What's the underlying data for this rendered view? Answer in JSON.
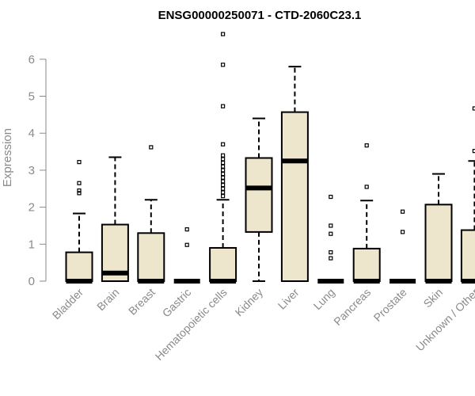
{
  "chart_data": {
    "type": "boxplot",
    "title": "ENSG00000250071 - CTD-2060C23.1",
    "ylabel": "Expression",
    "xlabel": "",
    "ylim": [
      0,
      7
    ],
    "yticks": [
      0,
      1,
      2,
      3,
      4,
      5,
      6
    ],
    "grid": false,
    "box_fill": "#ede5cc",
    "categories": [
      "Bladder",
      "Brain",
      "Breast",
      "Gastric",
      "Hematopoietic cells",
      "Kidney",
      "Liver",
      "Lung",
      "Pancreas",
      "Prostate",
      "Skin",
      "Unknown / Other"
    ],
    "boxes": [
      {
        "q1": 0,
        "median": 0,
        "q3": 0.78,
        "whisker_low": 0,
        "whisker_high": 1.83,
        "outliers": [
          2.38,
          2.45,
          2.65,
          3.22
        ]
      },
      {
        "q1": 0,
        "median": 0.22,
        "q3": 1.53,
        "whisker_low": 0,
        "whisker_high": 3.35,
        "outliers": []
      },
      {
        "q1": 0,
        "median": 0,
        "q3": 1.3,
        "whisker_low": 0,
        "whisker_high": 2.2,
        "outliers": [
          3.62
        ]
      },
      {
        "q1": 0,
        "median": 0,
        "q3": 0,
        "whisker_low": 0,
        "whisker_high": 0,
        "outliers": [
          0.98,
          1.4
        ]
      },
      {
        "q1": 0,
        "median": 0,
        "q3": 0.9,
        "whisker_low": 0,
        "whisker_high": 2.2,
        "outliers": [
          2.3,
          2.4,
          2.5,
          2.6,
          2.7,
          2.8,
          2.9,
          3.0,
          3.1,
          3.2,
          3.3,
          3.4,
          3.7,
          4.73,
          5.85,
          6.68
        ]
      },
      {
        "q1": 1.33,
        "median": 2.52,
        "q3": 3.33,
        "whisker_low": 0,
        "whisker_high": 4.4,
        "outliers": []
      },
      {
        "q1": 0,
        "median": 3.25,
        "q3": 4.57,
        "whisker_low": 0,
        "whisker_high": 5.8,
        "outliers": []
      },
      {
        "q1": 0,
        "median": 0,
        "q3": 0,
        "whisker_low": 0,
        "whisker_high": 0,
        "outliers": [
          0.62,
          0.78,
          1.28,
          1.5,
          2.28
        ]
      },
      {
        "q1": 0,
        "median": 0,
        "q3": 0.88,
        "whisker_low": 0,
        "whisker_high": 2.18,
        "outliers": [
          2.55,
          3.67
        ]
      },
      {
        "q1": 0,
        "median": 0,
        "q3": 0,
        "whisker_low": 0,
        "whisker_high": 0,
        "outliers": [
          1.33,
          1.88
        ]
      },
      {
        "q1": 0,
        "median": 0,
        "q3": 2.07,
        "whisker_low": 0,
        "whisker_high": 2.9,
        "outliers": []
      },
      {
        "q1": 0,
        "median": 0,
        "q3": 1.38,
        "whisker_low": 0,
        "whisker_high": 3.25,
        "outliers": [
          3.52,
          4.67
        ]
      }
    ]
  }
}
